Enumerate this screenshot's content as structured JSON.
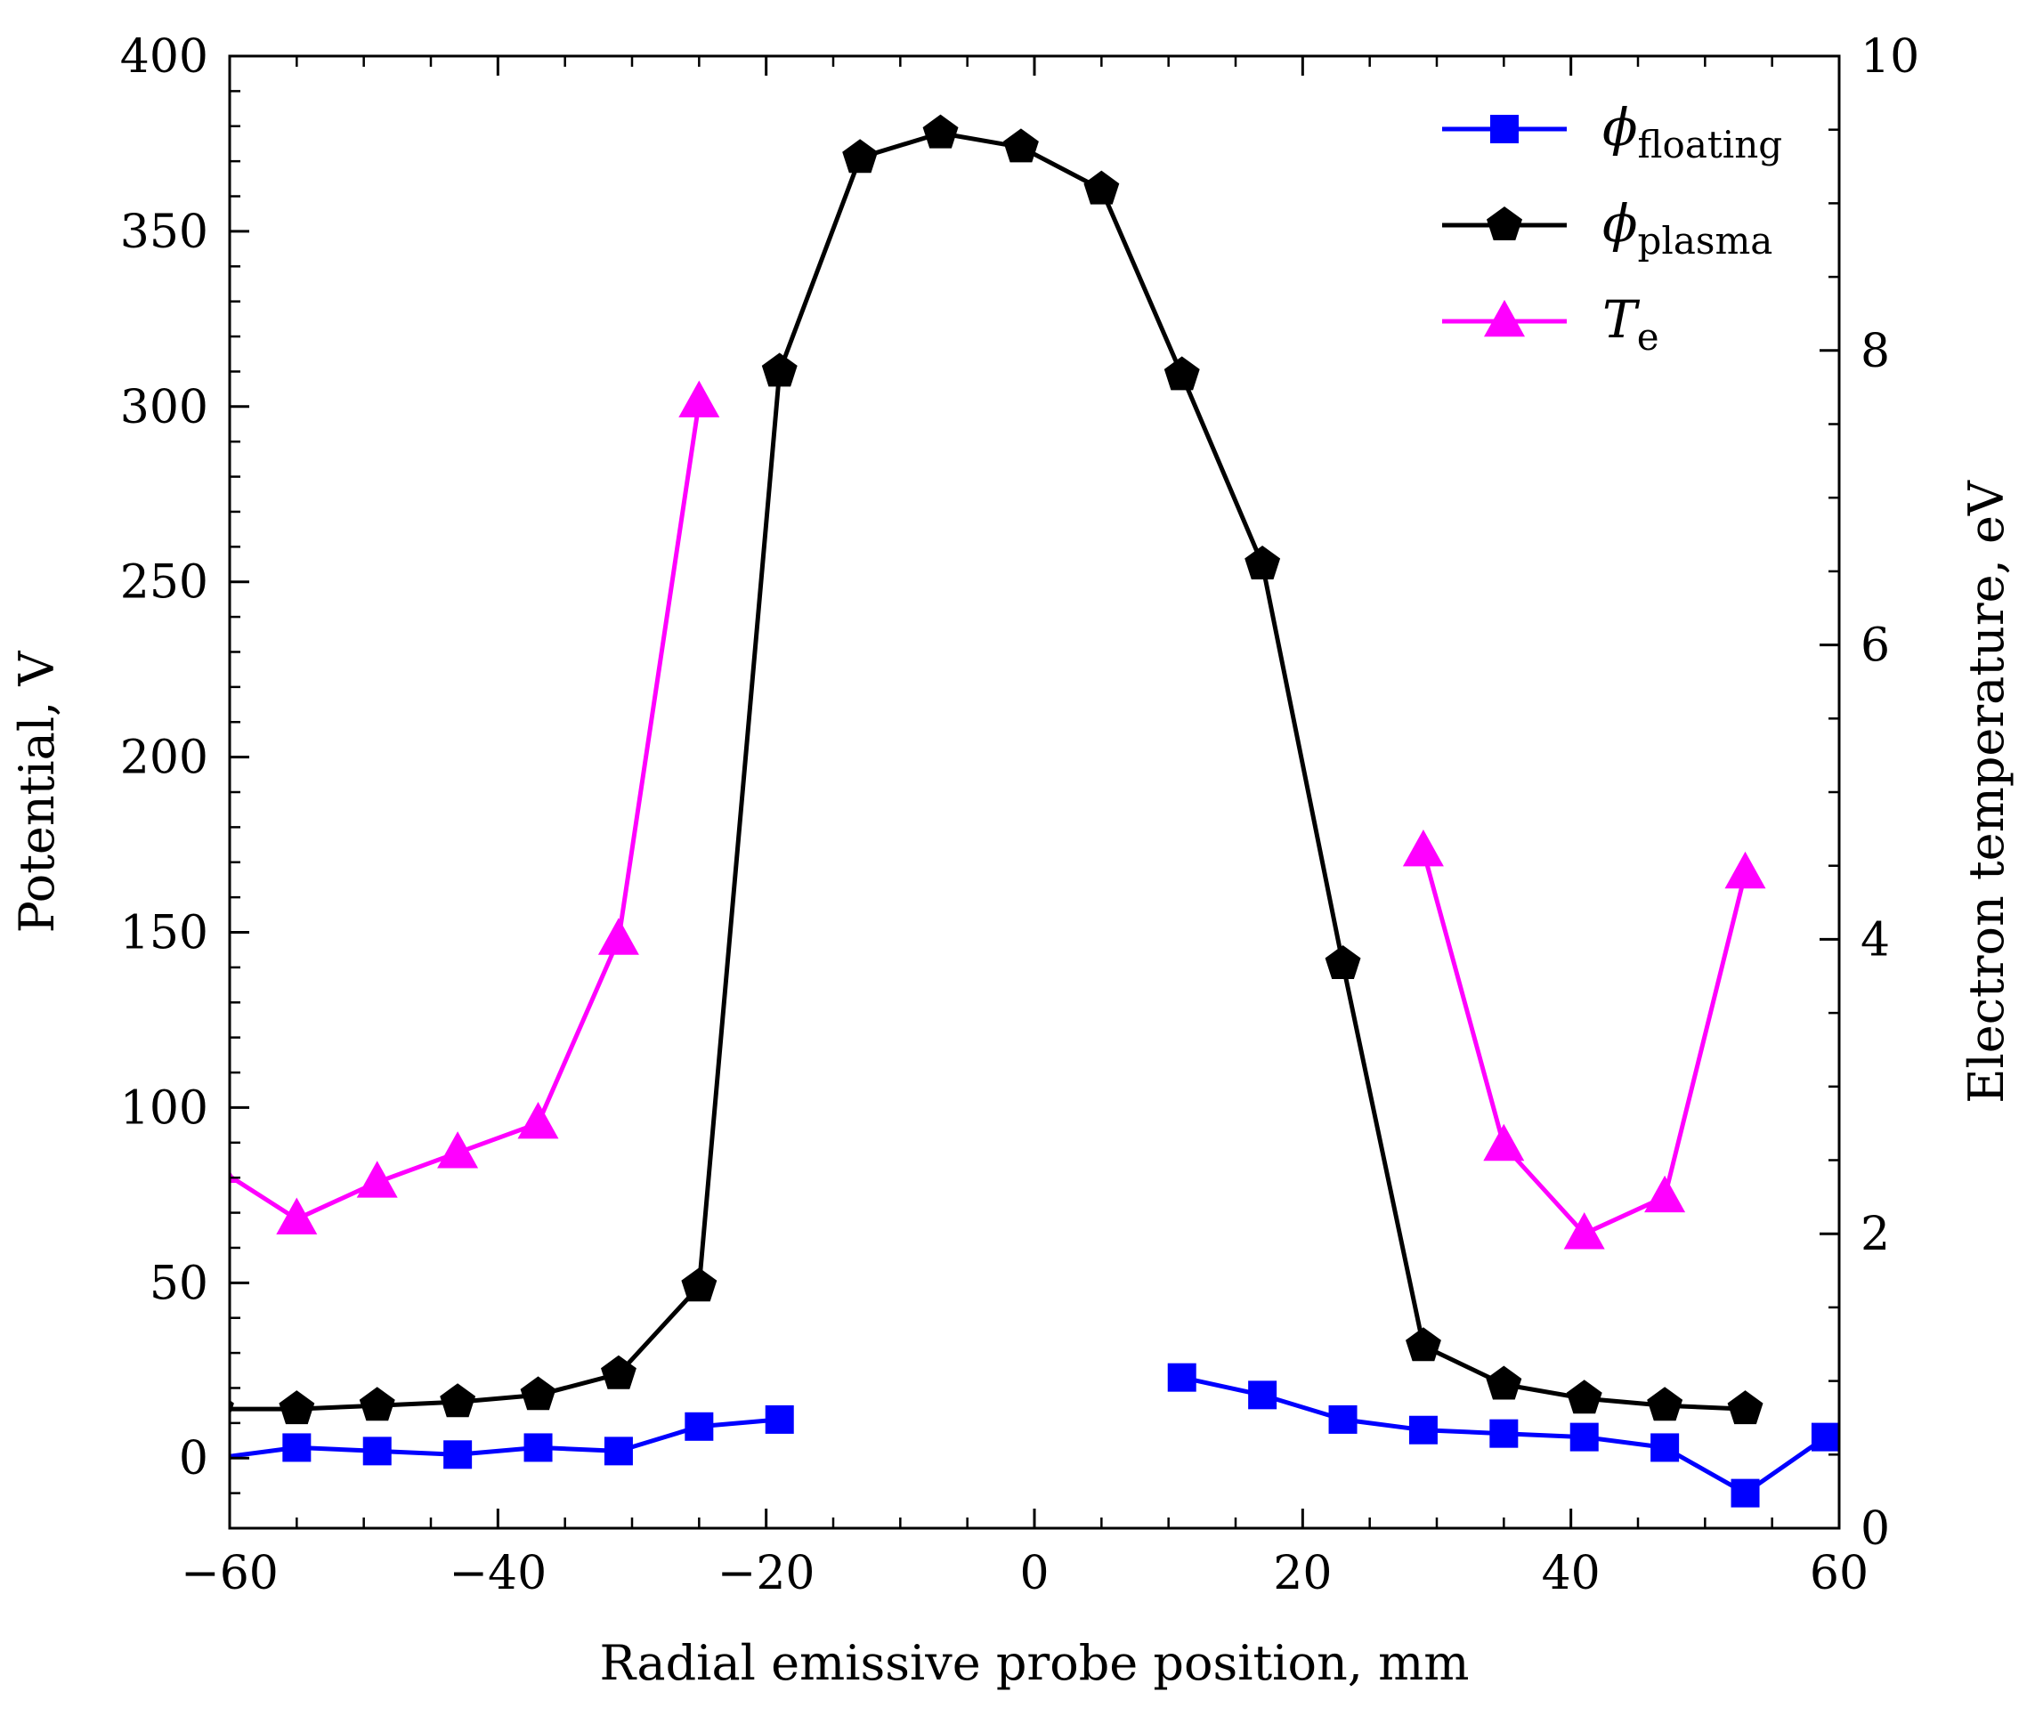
{
  "chart_data": {
    "type": "line",
    "title": "",
    "xlabel": "Radial emissive probe position, mm",
    "ylabel": "Potential, V",
    "y2label": "Electron temperature, eV",
    "xlim": [
      -60,
      60
    ],
    "ylim": [
      -20,
      400
    ],
    "y2lim": [
      0,
      10
    ],
    "x_ticks": [
      -60,
      -40,
      -20,
      0,
      20,
      40,
      60
    ],
    "x_tick_labels": [
      "−60",
      "−40",
      "−20",
      "0",
      "20",
      "40",
      "60"
    ],
    "y_ticks": [
      0,
      50,
      100,
      150,
      200,
      250,
      300,
      350,
      400
    ],
    "y_tick_labels": [
      "0",
      "50",
      "100",
      "150",
      "200",
      "250",
      "300",
      "350",
      "400"
    ],
    "y2_ticks": [
      0,
      2,
      4,
      6,
      8,
      10
    ],
    "y2_tick_labels": [
      "0",
      "2",
      "4",
      "6",
      "8",
      "10"
    ],
    "grid": false,
    "legend_position": "top-right",
    "series": [
      {
        "name": "floating",
        "legend_symbol": "ϕ",
        "legend_sub": "floating",
        "axis": "left",
        "color": "#0000ff",
        "marker": "square",
        "segments": [
          {
            "x": [
              -61,
              -55,
              -49,
              -43,
              -37,
              -31,
              -25,
              -19
            ],
            "y": [
              0,
              3,
              2,
              1,
              3,
              2,
              9,
              11
            ]
          },
          {
            "x": [
              11,
              17,
              23,
              29,
              35,
              41,
              47,
              53,
              59
            ],
            "y": [
              23,
              18,
              11,
              8,
              7,
              6,
              3,
              -10,
              6
            ]
          }
        ]
      },
      {
        "name": "plasma",
        "legend_symbol": "ϕ",
        "legend_sub": "plasma",
        "axis": "left",
        "color": "#000000",
        "marker": "pentagon",
        "segments": [
          {
            "x": [
              -61,
              -55,
              -49,
              -43,
              -37,
              -31,
              -25,
              -19,
              -13,
              -7,
              -1,
              5,
              11,
              17,
              23,
              29,
              35,
              41,
              47,
              53
            ],
            "y": [
              14,
              14,
              15,
              16,
              18,
              24,
              49,
              310,
              371,
              378,
              374,
              362,
              309,
              255,
              141,
              32,
              21,
              17,
              15,
              14
            ]
          }
        ]
      },
      {
        "name": "Te",
        "legend_symbol": "T",
        "legend_sub": "e",
        "axis": "right",
        "color": "#ff00ff",
        "marker": "triangle",
        "segments": [
          {
            "x": [
              -61,
              -55,
              -49,
              -43,
              -37,
              -31,
              -25
            ],
            "y": [
              2.45,
              2.1,
              2.35,
              2.55,
              2.75,
              4.0,
              7.65
            ]
          },
          {
            "x": [
              29,
              35,
              41,
              47,
              53
            ],
            "y": [
              4.6,
              2.6,
              2.0,
              2.25,
              4.45
            ]
          }
        ]
      }
    ]
  }
}
